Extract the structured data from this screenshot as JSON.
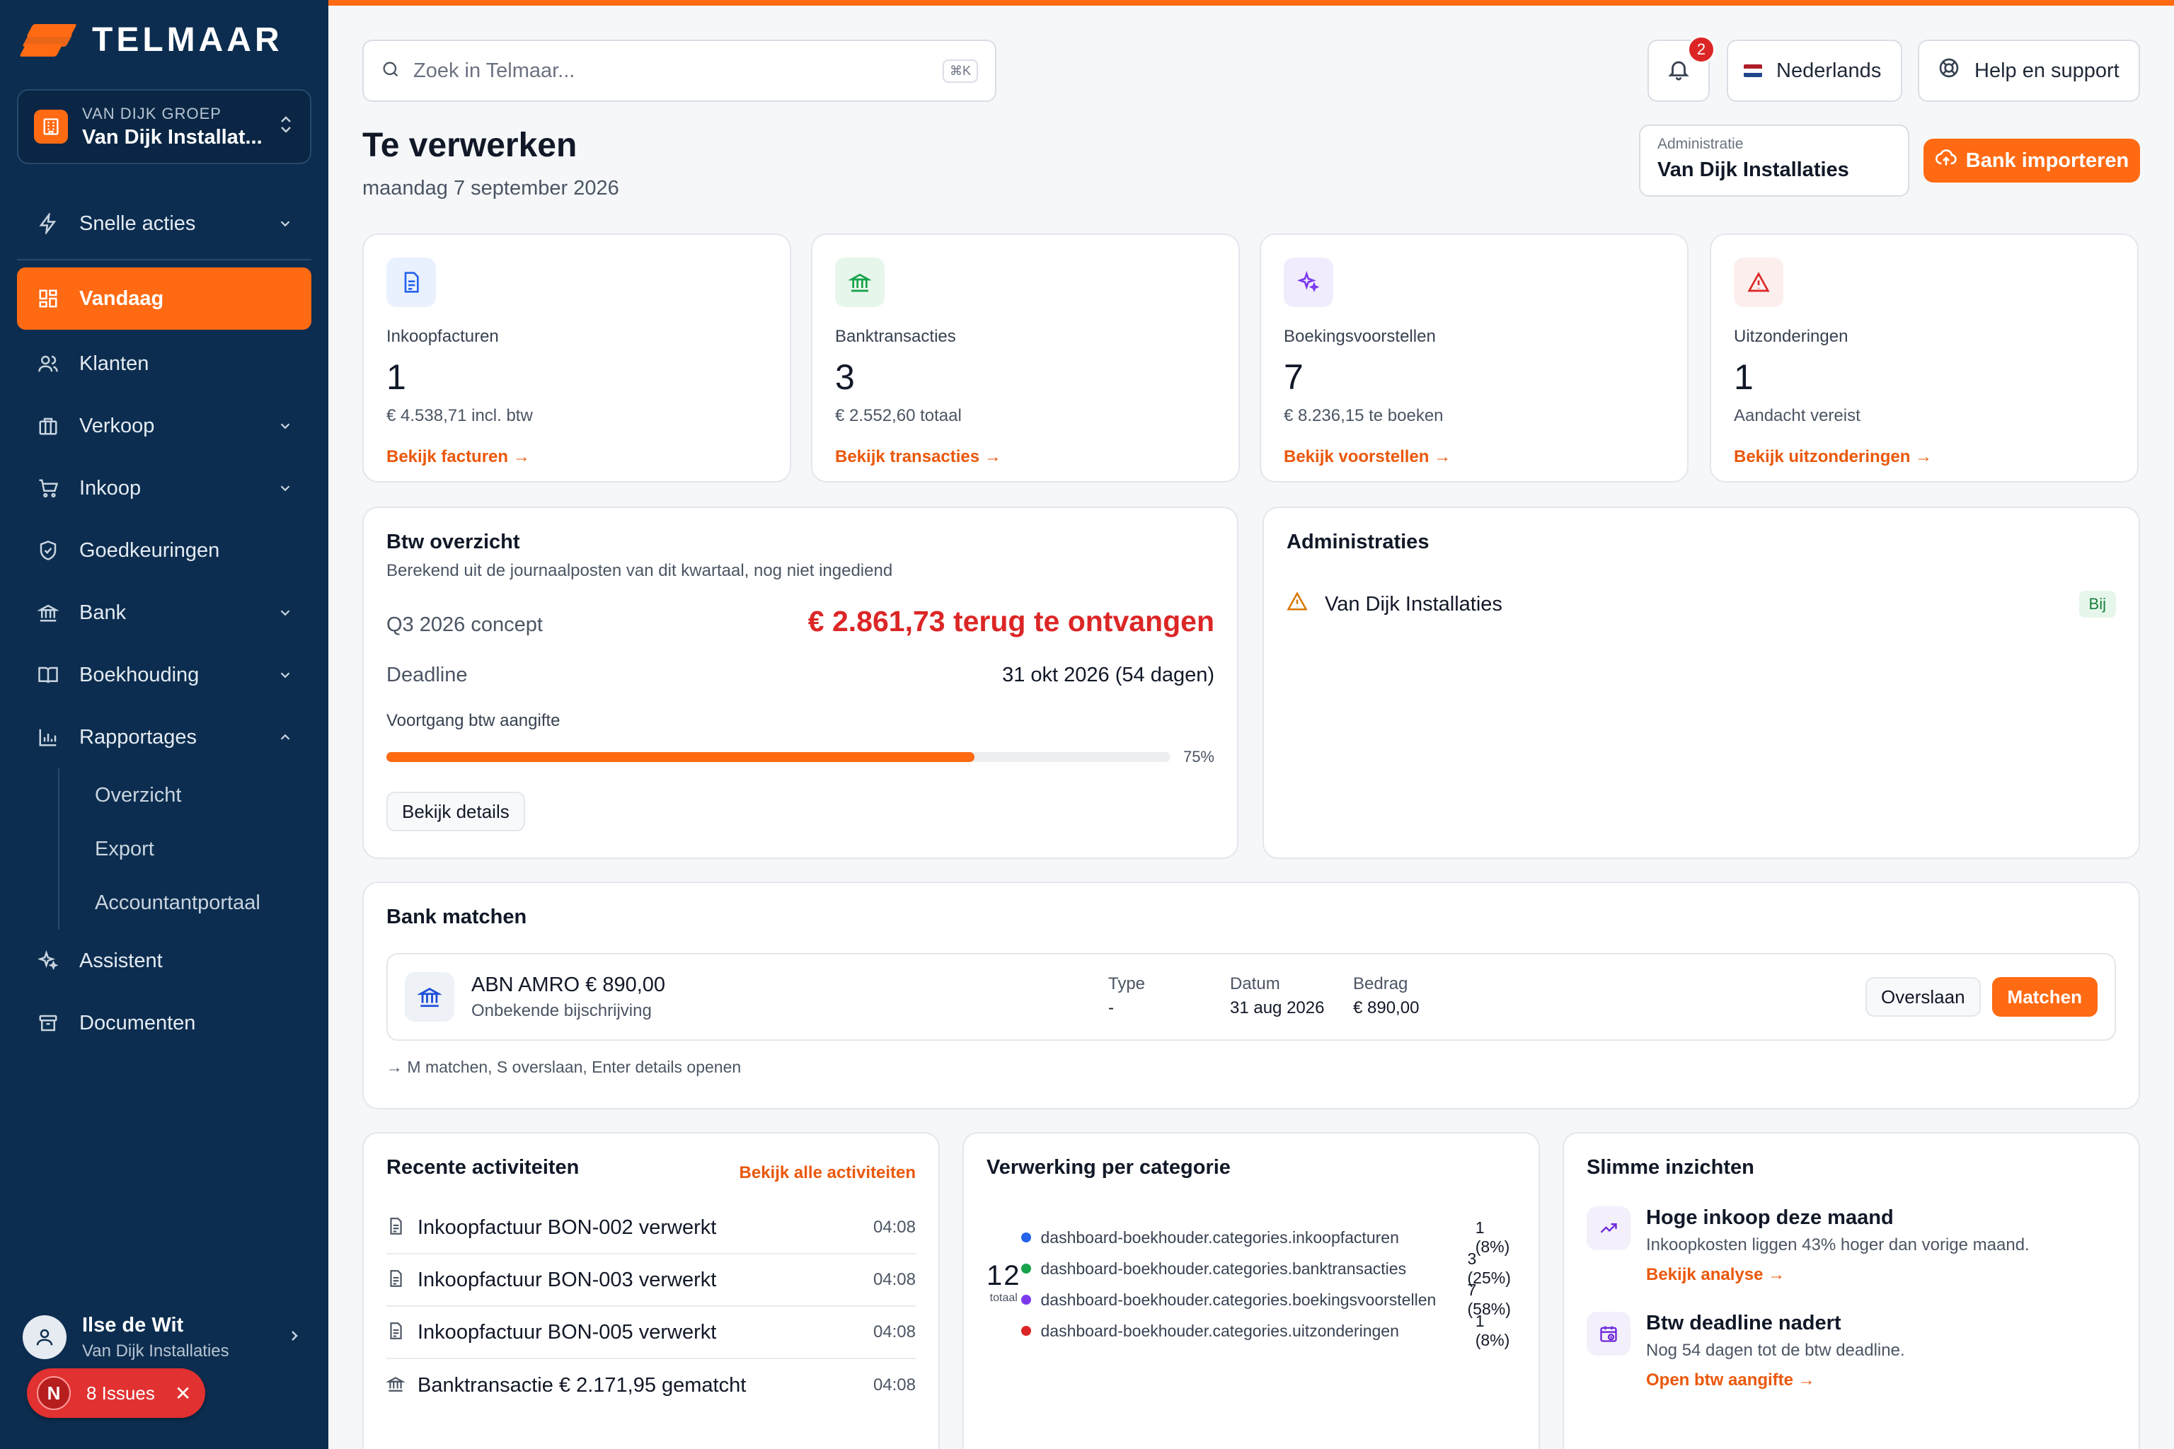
{
  "brand": {
    "name": "TELMAAR",
    "accent": "#ff6a13",
    "sidebar_bg": "#0c2d4f"
  },
  "org": {
    "group": "VAN DIJK GROEP",
    "name": "Van Dijk Installat..."
  },
  "nav": {
    "quick_actions": "Snelle acties",
    "today": "Vandaag",
    "clients": "Klanten",
    "sales": "Verkoop",
    "purchase": "Inkoop",
    "approvals": "Goedkeuringen",
    "bank": "Bank",
    "accounting": "Boekhouding",
    "reports": "Rapportages",
    "reports_sub": [
      "Overzicht",
      "Export",
      "Accountantportaal"
    ],
    "assistant": "Assistent",
    "documents": "Documenten"
  },
  "user": {
    "name": "Ilse de Wit",
    "org": "Van Dijk Installaties"
  },
  "issues": {
    "avatar": "N",
    "label": "8 Issues"
  },
  "header": {
    "search_placeholder": "Zoek in Telmaar...",
    "search_shortcut": "⌘K",
    "notifications": "2",
    "language": "Nederlands",
    "help": "Help en support"
  },
  "page": {
    "title": "Te verwerken",
    "date": "maandag 7 september 2026",
    "admin_label": "Administratie",
    "admin_value": "Van Dijk Installaties",
    "import_button": "Bank importeren"
  },
  "stats": [
    {
      "label": "Inkoopfacturen",
      "value": "1",
      "sub": "€ 4.538,71 incl. btw",
      "link": "Bekijk facturen",
      "icon": "document-icon",
      "bg": "#eaf1fe"
    },
    {
      "label": "Banktransacties",
      "value": "3",
      "sub": "€ 2.552,60 totaal",
      "link": "Bekijk transacties",
      "icon": "bank-icon",
      "bg": "#e7f6ea"
    },
    {
      "label": "Boekingsvoorstellen",
      "value": "7",
      "sub": "€ 8.236,15 te boeken",
      "link": "Bekijk voorstellen",
      "icon": "sparkles-icon",
      "bg": "#f1ecfd"
    },
    {
      "label": "Uitzonderingen",
      "value": "1",
      "sub": "Aandacht vereist",
      "link": "Bekijk uitzonderingen",
      "icon": "warning-icon",
      "bg": "#fdeeee"
    }
  ],
  "btw": {
    "title": "Btw overzicht",
    "subtitle": "Berekend uit de journaalposten van dit kwartaal, nog niet ingediend",
    "period": "Q3 2026 concept",
    "amount": "€ 2.861,73 terug te ontvangen",
    "deadline_label": "Deadline",
    "deadline_value": "31 okt 2026 (54 dagen)",
    "progress_label": "Voortgang btw aangifte",
    "progress_pct": "75%",
    "progress_value": 0.75,
    "details_button": "Bekijk details"
  },
  "administrations": {
    "title": "Administraties",
    "items": [
      {
        "name": "Van Dijk Installaties",
        "badge": "Bij"
      }
    ]
  },
  "bank_match": {
    "title": "Bank matchen",
    "tx_title": "ABN AMRO € 890,00",
    "tx_sub": "Onbekende bijschrijving",
    "type_label": "Type",
    "type_value": "-",
    "date_label": "Datum",
    "date_value": "31 aug 2026",
    "amount_label": "Bedrag",
    "amount_value": "€ 890,00",
    "skip": "Overslaan",
    "match": "Matchen",
    "hint": "M matchen, S overslaan, Enter details openen"
  },
  "recent": {
    "title": "Recente activiteiten",
    "link": "Bekijk alle activiteiten",
    "items": [
      {
        "text": "Inkoopfactuur BON-002 verwerkt",
        "time": "04:08",
        "icon": "document-icon"
      },
      {
        "text": "Inkoopfactuur BON-003 verwerkt",
        "time": "04:08",
        "icon": "document-icon"
      },
      {
        "text": "Inkoopfactuur BON-005 verwerkt",
        "time": "04:08",
        "icon": "document-icon"
      },
      {
        "text": "Banktransactie € 2.171,95 gematcht",
        "time": "04:08",
        "icon": "bank-icon"
      }
    ]
  },
  "categories": {
    "title": "Verwerking per categorie",
    "total": "12",
    "total_label": "totaal",
    "items": [
      {
        "name": "dashboard-boekhouder.categories.inkoopfacturen",
        "count": "1 (8%)",
        "color": "#2563eb"
      },
      {
        "name": "dashboard-boekhouder.categories.banktransacties",
        "count": "3 (25%)",
        "color": "#16a34a"
      },
      {
        "name": "dashboard-boekhouder.categories.boekingsvoorstellen",
        "count": "7 (58%)",
        "color": "#7c3aed"
      },
      {
        "name": "dashboard-boekhouder.categories.uitzonderingen",
        "count": "1 (8%)",
        "color": "#dc2626"
      }
    ]
  },
  "insights": {
    "title": "Slimme inzichten",
    "items": [
      {
        "title": "Hoge inkoop deze maand",
        "desc": "Inkoopkosten liggen 43% hoger dan vorige maand.",
        "link": "Bekijk analyse"
      },
      {
        "title": "Btw deadline nadert",
        "desc": "Nog 54 dagen tot de btw deadline.",
        "link": "Open btw aangifte"
      }
    ]
  }
}
